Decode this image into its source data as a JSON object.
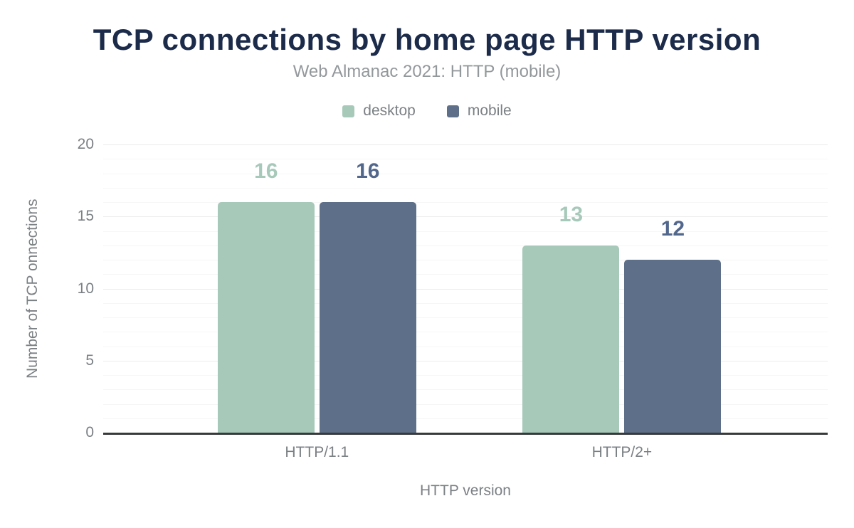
{
  "chart_data": {
    "type": "bar",
    "title": "TCP connections by home page HTTP version",
    "subtitle": "Web Almanac 2021: HTTP (mobile)",
    "xlabel": "HTTP version",
    "ylabel": "Number of TCP onnections",
    "categories": [
      "HTTP/1.1",
      "HTTP/2+"
    ],
    "series": [
      {
        "name": "desktop",
        "values": [
          16,
          13
        ],
        "color": "#a7c9ba",
        "label_color": "#a7c9ba"
      },
      {
        "name": "mobile",
        "values": [
          16,
          12
        ],
        "color": "#5e7089",
        "label_color": "#52678c"
      }
    ],
    "ylim": [
      0,
      20
    ],
    "yticks": [
      0,
      5,
      10,
      15,
      20
    ],
    "minor_grid_step": 1,
    "grid": true,
    "legend_position": "top",
    "bar_value_labels": true
  },
  "colors": {
    "title": "#1c2b4a",
    "subtitle": "#93989b",
    "axis_text": "#7b8084",
    "legend_text": "#7b8084",
    "grid_minor": "#f6f6f6",
    "grid_major": "#ececec",
    "baseline": "#37393b",
    "background": "#ffffff"
  }
}
